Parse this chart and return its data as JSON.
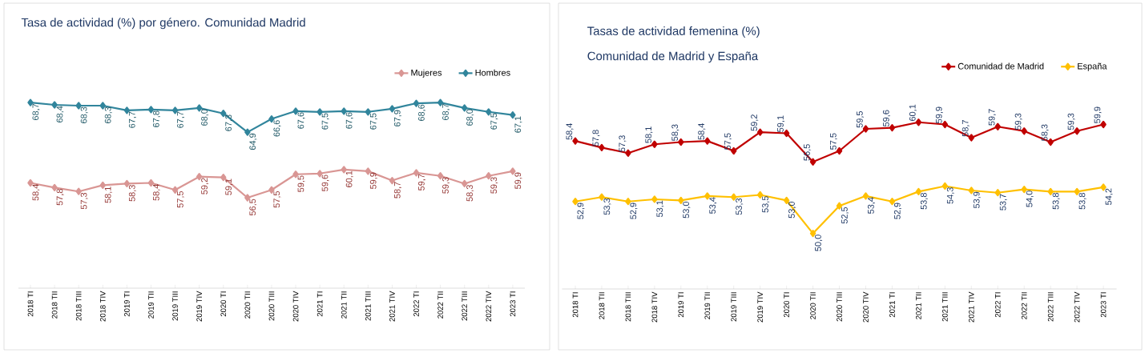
{
  "chart_data": [
    {
      "type": "line",
      "title": "Tasa de actividad (%) por género. Comunidad Madrid",
      "categories": [
        "2018 TI",
        "2018 TII",
        "2018 TIII",
        "2018 TIV",
        "2019 TI",
        "2019 TII",
        "2019 TIII",
        "2019 TIV",
        "2020 TI",
        "2020 TII",
        "2020 TIII",
        "2020 TIV",
        "2021 TI",
        "2021 TII",
        "2021 TIII",
        "2021 TIV",
        "2022 TI",
        "2022 TII",
        "2022 TIII",
        "2022 TIV",
        "2023 TI"
      ],
      "series": [
        {
          "name": "Mujeres",
          "color": "#d99694",
          "values": [
            58.4,
            57.8,
            57.3,
            58.1,
            58.3,
            58.4,
            57.5,
            59.2,
            59.1,
            56.5,
            57.5,
            59.5,
            59.6,
            60.1,
            59.9,
            58.7,
            59.7,
            59.3,
            58.3,
            59.3,
            59.9
          ],
          "value_labels": [
            "58,4",
            "57,8",
            "57,3",
            "58,1",
            "58,3",
            "58,4",
            "57,5",
            "59,2",
            "59,1",
            "56,5",
            "57,5",
            "59,5",
            "59,6",
            "60,1",
            "59,9",
            "58,7",
            "59,7",
            "59,3",
            "58,3",
            "59,3",
            "59,9"
          ]
        },
        {
          "name": "Hombres",
          "color": "#31859c",
          "values": [
            68.7,
            68.4,
            68.3,
            68.3,
            67.7,
            67.8,
            67.7,
            68.0,
            67.3,
            64.9,
            66.6,
            67.6,
            67.5,
            67.6,
            67.5,
            67.9,
            68.6,
            68.7,
            68.0,
            67.5,
            67.1
          ],
          "value_labels": [
            "68,7",
            "68,4",
            "68,3",
            "68,3",
            "67,7",
            "67,8",
            "67,7",
            "68,0",
            "67,3",
            "64,9",
            "66,6",
            "67,6",
            "67,5",
            "67,6",
            "67,5",
            "67,9",
            "68,6",
            "68,7",
            "68,0",
            "67,5",
            "67,1"
          ]
        }
      ],
      "legend": "top right",
      "marker": "diamond",
      "tick_labels": "x"
    },
    {
      "type": "line",
      "title": "Tasas de actividad femenina (%)",
      "subtitle": "Comunidad de Madrid y España",
      "categories": [
        "2018 TI",
        "2018 TII",
        "2018 TIII",
        "2018 TIV",
        "2019 TI",
        "2019 TII",
        "2019 TIII",
        "2019 TIV",
        "2020 TI",
        "2020 TII",
        "2020 TIII",
        "2020 TIV",
        "2021 TI",
        "2021 TII",
        "2021 TIII",
        "2021 TIV",
        "2022 TI",
        "2022 TII",
        "2022 TIII",
        "2022 TIV",
        "2023 TI"
      ],
      "series": [
        {
          "name": "Comunidad de Madrid",
          "color": "#c00000",
          "values": [
            58.4,
            57.8,
            57.3,
            58.1,
            58.3,
            58.4,
            57.5,
            59.2,
            59.1,
            56.5,
            57.5,
            59.5,
            59.6,
            60.1,
            59.9,
            58.7,
            59.7,
            59.3,
            58.3,
            59.3,
            59.9
          ],
          "value_labels": [
            "58,4",
            "57,8",
            "57,3",
            "58,1",
            "58,3",
            "58,4",
            "57,5",
            "59,2",
            "59,1",
            "56,5",
            "57,5",
            "59,5",
            "59,6",
            "60,1",
            "59,9",
            "58,7",
            "59,7",
            "59,3",
            "58,3",
            "59,3",
            "59,9"
          ]
        },
        {
          "name": "España",
          "color": "#ffc000",
          "values": [
            52.9,
            53.3,
            52.9,
            53.1,
            53.0,
            53.4,
            53.3,
            53.5,
            53.0,
            50.0,
            52.5,
            53.4,
            52.9,
            53.8,
            54.3,
            53.9,
            53.7,
            54.0,
            53.8,
            53.8,
            54.2
          ],
          "value_labels": [
            "52,9",
            "53,3",
            "52,9",
            "53,1",
            "53,0",
            "53,4",
            "53,3",
            "53,5",
            "53,0",
            "50,0",
            "52,5",
            "53,4",
            "52,9",
            "53,8",
            "54,3",
            "53,9",
            "53,7",
            "54,0",
            "53,8",
            "53,8",
            "54,2"
          ]
        }
      ],
      "legend": "top right",
      "marker": "diamond",
      "tick_labels": "x"
    }
  ]
}
